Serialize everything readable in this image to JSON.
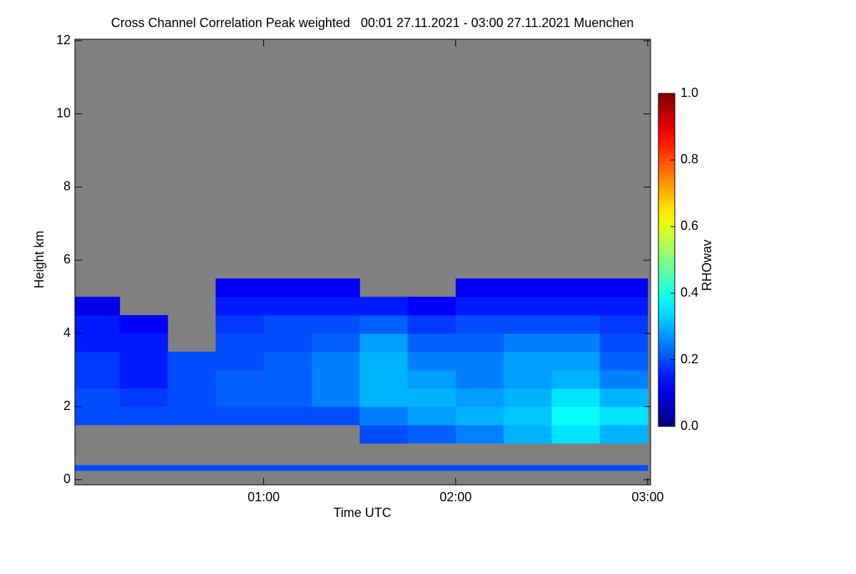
{
  "chart_data": {
    "type": "heatmap",
    "title": "Cross Channel Correlation Peak weighted   00:01 27.11.2021 - 03:00 27.11.2021 Muenchen",
    "x_label": "Time UTC",
    "y_label": "Height km",
    "colorbar_label": "RHOwav",
    "colormap": "jet",
    "missing_color": "#808080",
    "xlim": [
      0.017,
      3.015
    ],
    "xticks": [
      {
        "value": 1,
        "label": "01:00"
      },
      {
        "value": 2,
        "label": "02:00"
      },
      {
        "value": 3,
        "label": "03:00"
      }
    ],
    "ylim": [
      -0.14,
      12.04
    ],
    "yticks": [
      0,
      2,
      4,
      6,
      8,
      10,
      12
    ],
    "zlim": [
      0,
      1
    ],
    "zticks": [
      {
        "value": 0,
        "label": "0.0"
      },
      {
        "value": 0.2,
        "label": "0.2"
      },
      {
        "value": 0.4,
        "label": "0.4"
      },
      {
        "value": 0.6,
        "label": "0.6"
      },
      {
        "value": 0.8,
        "label": "0.8"
      },
      {
        "value": 1,
        "label": "1.0"
      }
    ],
    "x_bins": [
      0,
      0.25,
      0.5,
      0.75,
      1,
      1.25,
      1.5,
      1.75,
      2,
      2.25,
      2.5,
      2.75,
      3
    ],
    "y_bins": [
      0,
      0.25,
      0.4,
      1.0,
      1.5,
      2.0,
      2.5,
      3.0,
      3.5,
      4.0,
      4.5,
      5.0,
      5.5
    ],
    "z": [
      [
        null,
        null,
        null,
        null,
        null,
        null,
        null,
        null,
        null,
        null,
        null,
        null
      ],
      [
        0.2,
        0.2,
        0.2,
        0.2,
        0.2,
        0.2,
        0.2,
        0.2,
        0.2,
        0.2,
        0.2,
        0.2
      ],
      [
        null,
        null,
        null,
        null,
        null,
        null,
        null,
        null,
        null,
        null,
        null,
        null
      ],
      [
        null,
        null,
        null,
        null,
        null,
        null,
        0.2,
        0.22,
        0.25,
        0.3,
        0.35,
        0.3
      ],
      [
        0.2,
        0.2,
        0.2,
        0.2,
        0.2,
        0.2,
        0.25,
        0.28,
        0.3,
        0.32,
        0.38,
        0.35
      ],
      [
        0.2,
        0.18,
        0.2,
        0.22,
        0.22,
        0.25,
        0.3,
        0.3,
        0.28,
        0.3,
        0.35,
        0.3
      ],
      [
        0.18,
        0.15,
        0.2,
        0.22,
        0.22,
        0.25,
        0.3,
        0.28,
        0.25,
        0.28,
        0.3,
        0.25
      ],
      [
        0.18,
        0.15,
        0.2,
        0.2,
        0.22,
        0.25,
        0.3,
        0.25,
        0.25,
        0.28,
        0.28,
        0.22
      ],
      [
        0.15,
        0.15,
        null,
        0.2,
        0.2,
        0.22,
        0.28,
        0.22,
        0.22,
        0.25,
        0.25,
        0.2
      ],
      [
        0.15,
        0.12,
        null,
        0.18,
        0.2,
        0.2,
        0.22,
        0.18,
        0.2,
        0.2,
        0.2,
        0.18
      ],
      [
        0.1,
        null,
        null,
        0.15,
        0.15,
        0.15,
        0.15,
        0.12,
        0.15,
        0.15,
        0.15,
        0.15
      ],
      [
        null,
        null,
        null,
        0.12,
        0.12,
        0.12,
        null,
        null,
        0.12,
        0.12,
        0.12,
        0.12
      ]
    ]
  }
}
